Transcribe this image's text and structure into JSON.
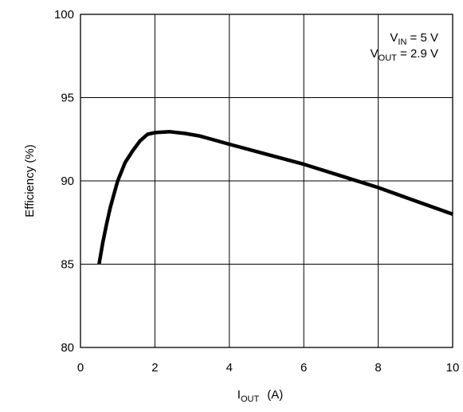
{
  "chart_data": {
    "type": "line",
    "title": "",
    "xlabel": {
      "main": "I",
      "sub": "OUT",
      "unit": "(A)"
    },
    "ylabel": "Efficiency (%)",
    "xlim": [
      0,
      10
    ],
    "ylim": [
      80,
      100
    ],
    "xticks": [
      0,
      2,
      4,
      6,
      8,
      10
    ],
    "yticks": [
      80,
      85,
      90,
      95,
      100
    ],
    "xtick_labels": [
      "0",
      "2",
      "4",
      "6",
      "8",
      "10"
    ],
    "ytick_labels": [
      "80",
      "85",
      "90",
      "95",
      "100"
    ],
    "grid": true,
    "annotations": [
      {
        "main": "V",
        "sub": "IN",
        "rest": " = 5 V"
      },
      {
        "main": "V",
        "sub": "OUT",
        "rest": " = 2.9 V"
      }
    ],
    "series": [
      {
        "color": "#000000",
        "x": [
          0.5,
          0.6,
          0.7,
          0.8,
          0.9,
          1.0,
          1.2,
          1.4,
          1.6,
          1.8,
          2.0,
          2.4,
          2.8,
          3.2,
          4.0,
          5.0,
          6.0,
          7.0,
          8.0,
          9.0,
          10.0
        ],
        "y": [
          85.0,
          86.3,
          87.4,
          88.4,
          89.2,
          90.0,
          91.1,
          91.8,
          92.4,
          92.8,
          92.9,
          92.95,
          92.85,
          92.7,
          92.2,
          91.6,
          91.0,
          90.3,
          89.6,
          88.8,
          88.0
        ]
      }
    ]
  }
}
